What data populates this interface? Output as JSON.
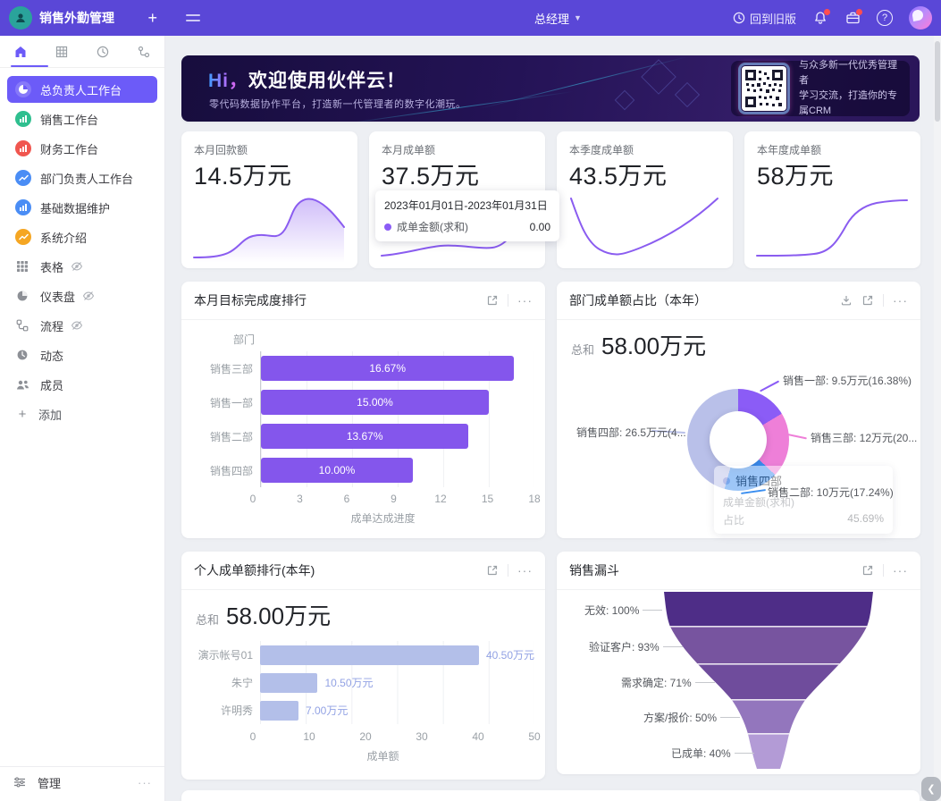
{
  "topbar": {
    "app_title": "销售外勤管理",
    "role": "总经理",
    "back_to_old_label": "回到旧版",
    "icons": [
      "app-logo",
      "plus-icon",
      "hamburger-icon",
      "chevron-down-icon",
      "history-icon",
      "bell-icon",
      "briefcase-icon",
      "help-icon",
      "user-avatar"
    ]
  },
  "sidebar": {
    "tabs": [
      {
        "icon": "home-icon",
        "active": true
      },
      {
        "icon": "table-icon",
        "active": false
      },
      {
        "icon": "clock-icon",
        "active": false
      },
      {
        "icon": "org-icon",
        "active": false
      }
    ],
    "items": [
      {
        "label": "总负责人工作台",
        "icon": "pie-chart-icon",
        "color": "#6c5bf8",
        "selected": true
      },
      {
        "label": "销售工作台",
        "icon": "bar-chart-icon",
        "color": "#2fbf8f",
        "selected": false
      },
      {
        "label": "财务工作台",
        "icon": "bar-chart-icon",
        "color": "#f0564f",
        "selected": false
      },
      {
        "label": "部门负责人工作台",
        "icon": "line-chart-icon",
        "color": "#4a8df5",
        "selected": false
      },
      {
        "label": "基础数据维护",
        "icon": "bar-chart-icon",
        "color": "#4a8df5",
        "selected": false
      },
      {
        "label": "系统介绍",
        "icon": "line-chart-icon",
        "color": "#f5a623",
        "selected": false
      }
    ],
    "tools": [
      {
        "label": "表格",
        "icon": "grid-icon",
        "eye_hidden": true
      },
      {
        "label": "仪表盘",
        "icon": "dashboard-icon",
        "eye_hidden": true
      },
      {
        "label": "流程",
        "icon": "flow-icon",
        "eye_hidden": true
      },
      {
        "label": "动态",
        "icon": "activity-icon",
        "eye_hidden": false
      },
      {
        "label": "成员",
        "icon": "members-icon",
        "eye_hidden": false
      }
    ],
    "add_label": "添加",
    "manage_label": "管理"
  },
  "banner": {
    "greeting": "Hi，",
    "title": "欢迎使用伙伴云！",
    "subtitle": "零代码数据协作平台，打造新一代管理者的数字化潮玩。",
    "qr_caption_line1": "与众多新一代优秀管理者",
    "qr_caption_line2": "学习交流，打造你的专属CRM"
  },
  "stats": [
    {
      "label": "本月回款额",
      "value": "14.5万元"
    },
    {
      "label": "本月成单额",
      "value": "37.5万元"
    },
    {
      "label": "本季度成单额",
      "value": "43.5万元"
    },
    {
      "label": "本年度成单额",
      "value": "58万元"
    }
  ],
  "tooltip_card2": {
    "date_range": "2023年01月01日-2023年01月31日",
    "series_label": "成单金额(求和)",
    "series_value": "0.00"
  },
  "cards": {
    "goal_rank": {
      "title": "本月目标完成度排行"
    },
    "dept_share": {
      "title": "部门成单额占比（本年）",
      "total_label": "总和",
      "total_value": "58.00万元",
      "labels": [
        "销售一部: 9.5万元(16.38%)",
        "销售三部: 12万元(20...",
        "销售四部: 26.5万元(4...",
        "销售二部: 10万元(17.24%)"
      ],
      "tooltip": {
        "title": "销售四部",
        "row1_label": "成单金额(求和)",
        "row1_value": "",
        "row2_label": "占比",
        "row2_value": "45.69%"
      }
    },
    "personal_rank": {
      "title": "个人成单额排行(本年)",
      "total_label": "总和",
      "total_value": "58.00万元"
    },
    "funnel": {
      "title": "销售漏斗"
    }
  },
  "chart_data": [
    {
      "id": "goal_rank",
      "type": "bar",
      "orientation": "horizontal",
      "title": "本月目标完成度排行",
      "ylabel": "部门",
      "xlabel": "成单达成进度",
      "xlim": [
        0,
        18
      ],
      "xticks": [
        0,
        3,
        6,
        9,
        12,
        15,
        18
      ],
      "grid": true,
      "categories": [
        "销售三部",
        "销售一部",
        "销售二部",
        "销售四部"
      ],
      "values": [
        16.67,
        15.0,
        13.67,
        10.0
      ],
      "value_labels": [
        "16.67%",
        "15.00%",
        "13.67%",
        "10.00%"
      ],
      "bar_color": "#8456ec"
    },
    {
      "id": "dept_share",
      "type": "pie",
      "title": "部门成单额占比（本年）",
      "total": "58.00万元",
      "unit": "万元",
      "segments": [
        {
          "name": "销售一部",
          "value": 9.5,
          "percent": 16.38,
          "color": "#8b5cf6"
        },
        {
          "name": "销售三部",
          "value": 12,
          "percent": 20.69,
          "color": "#ee7fd8"
        },
        {
          "name": "销售二部",
          "value": 10,
          "percent": 17.24,
          "color": "#3a8ef0"
        },
        {
          "name": "销售四部",
          "value": 26.5,
          "percent": 45.69,
          "color": "#b9c0e9"
        }
      ],
      "hover_tooltip": {
        "segment": "销售四部",
        "rows": [
          [
            "成单金额(求和)",
            ""
          ],
          [
            "占比",
            "45.69%"
          ]
        ]
      }
    },
    {
      "id": "personal_rank",
      "type": "bar",
      "orientation": "horizontal",
      "title": "个人成单额排行(本年)",
      "xlabel": "成单额",
      "xlim": [
        0,
        50
      ],
      "xticks": [
        0,
        10,
        20,
        30,
        40,
        50
      ],
      "grid": true,
      "categories": [
        "演示帐号01",
        "朱宁",
        "许明秀"
      ],
      "values": [
        40.5,
        10.5,
        7.0
      ],
      "value_labels": [
        "40.50万元",
        "10.50万元",
        "7.00万元"
      ],
      "bar_color": "#b3bfe9"
    },
    {
      "id": "funnel",
      "type": "funnel",
      "title": "销售漏斗",
      "stages": [
        {
          "label": "无效",
          "percent": 100
        },
        {
          "label": "验证客户",
          "percent": 93
        },
        {
          "label": "需求确定",
          "percent": 71
        },
        {
          "label": "方案/报价",
          "percent": 50
        },
        {
          "label": "已成单",
          "percent": 40
        }
      ],
      "colors": [
        "#4e2d87",
        "#77549f",
        "#6f4c9c",
        "#9376bd",
        "#b39bd6"
      ]
    },
    {
      "id": "stat_sparklines",
      "type": "line",
      "note": "unlabeled decorative sparklines on the four stat cards",
      "series": [
        {
          "name": "本月回款额",
          "values": [
            2,
            2,
            3,
            8,
            18,
            20,
            19,
            20,
            34,
            46,
            44,
            38,
            30
          ]
        },
        {
          "name": "本月成单额",
          "values": [
            6,
            7,
            8,
            10,
            11,
            10,
            9,
            10,
            9,
            14,
            34
          ]
        },
        {
          "name": "本季度成单额",
          "values": [
            40,
            22,
            10,
            6,
            5,
            7,
            12,
            18,
            26,
            34,
            44
          ]
        },
        {
          "name": "本年度成单额",
          "values": [
            2,
            2,
            2,
            3,
            4,
            10,
            24,
            34,
            38,
            40,
            40
          ]
        }
      ]
    }
  ]
}
